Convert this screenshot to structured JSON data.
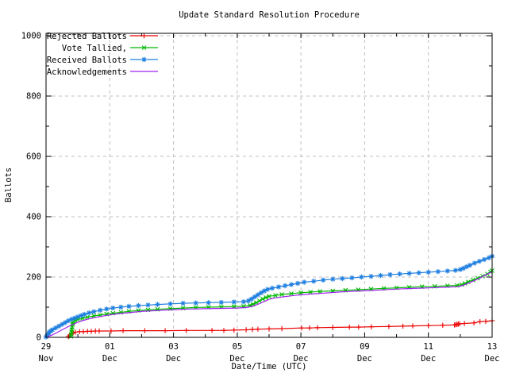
{
  "chart_data": {
    "type": "line",
    "title": "Update Standard Resolution Procedure",
    "xlabel": "Date/Time (UTC)",
    "ylabel": "Ballots",
    "xlim_days": [
      0,
      14
    ],
    "ylim": [
      0,
      1000
    ],
    "grid": true,
    "legend_position": "top-left-inside",
    "grid_color": "#bfbfbf",
    "axis_color": "#000000",
    "x_ticks": [
      {
        "day": 0,
        "line1": "29",
        "line2": "Nov"
      },
      {
        "day": 2,
        "line1": "01",
        "line2": "Dec"
      },
      {
        "day": 4,
        "line1": "03",
        "line2": "Dec"
      },
      {
        "day": 6,
        "line1": "05",
        "line2": "Dec"
      },
      {
        "day": 8,
        "line1": "07",
        "line2": "Dec"
      },
      {
        "day": 10,
        "line1": "09",
        "line2": "Dec"
      },
      {
        "day": 12,
        "line1": "11",
        "line2": "Dec"
      },
      {
        "day": 14,
        "line1": "13",
        "line2": "Dec"
      }
    ],
    "x_minor_tick_days": [
      1,
      3,
      5,
      7,
      9,
      11,
      13
    ],
    "x_grid_days": [
      2,
      4,
      6,
      8,
      10,
      12
    ],
    "y_major_ticks": [
      0,
      200,
      400,
      600,
      800,
      1000
    ],
    "y_minor_ticks": [
      100,
      300,
      500,
      700,
      900
    ],
    "y_grid_values": [
      200,
      400,
      600,
      800,
      1000
    ],
    "series": [
      {
        "name": "Rejected Ballots",
        "color": "#ee0000",
        "marker": "plus",
        "points": [
          [
            0.7,
            2
          ],
          [
            0.75,
            7
          ],
          [
            0.8,
            12
          ],
          [
            0.85,
            15
          ],
          [
            0.92,
            17
          ],
          [
            1.05,
            19
          ],
          [
            1.17,
            19
          ],
          [
            1.3,
            20
          ],
          [
            1.42,
            20
          ],
          [
            1.55,
            21
          ],
          [
            1.67,
            21
          ],
          [
            2.04,
            21
          ],
          [
            2.42,
            22
          ],
          [
            3.1,
            22
          ],
          [
            3.74,
            22
          ],
          [
            4.4,
            23
          ],
          [
            5.21,
            23
          ],
          [
            5.58,
            23
          ],
          [
            5.9,
            24
          ],
          [
            6.28,
            25
          ],
          [
            6.48,
            26
          ],
          [
            6.65,
            27
          ],
          [
            7.0,
            28
          ],
          [
            7.4,
            29
          ],
          [
            8.02,
            31
          ],
          [
            8.27,
            31
          ],
          [
            8.52,
            32
          ],
          [
            9.0,
            33
          ],
          [
            9.52,
            34
          ],
          [
            9.81,
            34
          ],
          [
            10.21,
            35
          ],
          [
            10.76,
            36
          ],
          [
            11.2,
            37
          ],
          [
            11.51,
            38
          ],
          [
            12.0,
            39
          ],
          [
            12.45,
            40
          ],
          [
            12.82,
            41
          ],
          [
            12.86,
            42
          ],
          [
            12.9,
            43
          ],
          [
            12.94,
            44
          ],
          [
            12.98,
            45
          ],
          [
            13.13,
            46
          ],
          [
            13.43,
            48
          ],
          [
            13.62,
            52
          ],
          [
            13.8,
            53
          ],
          [
            14.0,
            55
          ]
        ]
      },
      {
        "name": "Vote Tallied,",
        "color": "#00b800",
        "marker": "cross",
        "points": [
          [
            0.78,
            3
          ],
          [
            0.79,
            10
          ],
          [
            0.8,
            18
          ],
          [
            0.81,
            26
          ],
          [
            0.82,
            34
          ],
          [
            0.83,
            42
          ],
          [
            0.84,
            48
          ],
          [
            0.86,
            53
          ],
          [
            0.9,
            56
          ],
          [
            1.0,
            59
          ],
          [
            1.15,
            63
          ],
          [
            1.3,
            67
          ],
          [
            1.5,
            71
          ],
          [
            1.7,
            74
          ],
          [
            1.9,
            77
          ],
          [
            2.1,
            80
          ],
          [
            2.35,
            83
          ],
          [
            2.6,
            86
          ],
          [
            2.9,
            89
          ],
          [
            3.2,
            91
          ],
          [
            3.5,
            93
          ],
          [
            3.9,
            95
          ],
          [
            4.3,
            97
          ],
          [
            4.7,
            99
          ],
          [
            5.1,
            100
          ],
          [
            5.5,
            101
          ],
          [
            5.9,
            102
          ],
          [
            6.2,
            103
          ],
          [
            6.4,
            106
          ],
          [
            6.5,
            110
          ],
          [
            6.6,
            115
          ],
          [
            6.7,
            121
          ],
          [
            6.8,
            127
          ],
          [
            6.9,
            132
          ],
          [
            7.0,
            136
          ],
          [
            7.2,
            139
          ],
          [
            7.4,
            142
          ],
          [
            7.7,
            145
          ],
          [
            8.0,
            148
          ],
          [
            8.3,
            150
          ],
          [
            8.6,
            152
          ],
          [
            9.0,
            154
          ],
          [
            9.4,
            156
          ],
          [
            9.8,
            158
          ],
          [
            10.2,
            160
          ],
          [
            10.6,
            162
          ],
          [
            11.0,
            164
          ],
          [
            11.4,
            166
          ],
          [
            11.8,
            168
          ],
          [
            12.2,
            169
          ],
          [
            12.6,
            171
          ],
          [
            12.9,
            172
          ],
          [
            13.05,
            175
          ],
          [
            13.15,
            179
          ],
          [
            13.25,
            184
          ],
          [
            13.4,
            190
          ],
          [
            13.55,
            196
          ],
          [
            13.7,
            203
          ],
          [
            13.85,
            210
          ],
          [
            13.95,
            217
          ],
          [
            14.0,
            221
          ]
        ]
      },
      {
        "name": "Received Ballots",
        "color": "#1e7fe0",
        "marker": "star",
        "points": [
          [
            0,
            1
          ],
          [
            0.03,
            5
          ],
          [
            0.05,
            9
          ],
          [
            0.08,
            13
          ],
          [
            0.1,
            17
          ],
          [
            0.15,
            21
          ],
          [
            0.2,
            25
          ],
          [
            0.3,
            31
          ],
          [
            0.4,
            37
          ],
          [
            0.5,
            43
          ],
          [
            0.6,
            49
          ],
          [
            0.7,
            55
          ],
          [
            0.8,
            60
          ],
          [
            0.9,
            64
          ],
          [
            1.0,
            68
          ],
          [
            1.1,
            72
          ],
          [
            1.2,
            76
          ],
          [
            1.35,
            81
          ],
          [
            1.5,
            85
          ],
          [
            1.7,
            90
          ],
          [
            1.9,
            94
          ],
          [
            2.1,
            97
          ],
          [
            2.35,
            100
          ],
          [
            2.6,
            103
          ],
          [
            2.9,
            105
          ],
          [
            3.2,
            107
          ],
          [
            3.5,
            109
          ],
          [
            3.9,
            111
          ],
          [
            4.3,
            113
          ],
          [
            4.7,
            114
          ],
          [
            5.1,
            115
          ],
          [
            5.5,
            116
          ],
          [
            5.9,
            117
          ],
          [
            6.2,
            118
          ],
          [
            6.35,
            121
          ],
          [
            6.45,
            127
          ],
          [
            6.55,
            134
          ],
          [
            6.65,
            141
          ],
          [
            6.75,
            148
          ],
          [
            6.85,
            154
          ],
          [
            6.95,
            159
          ],
          [
            7.1,
            163
          ],
          [
            7.3,
            167
          ],
          [
            7.5,
            171
          ],
          [
            7.7,
            175
          ],
          [
            7.9,
            179
          ],
          [
            8.1,
            183
          ],
          [
            8.4,
            186
          ],
          [
            8.7,
            190
          ],
          [
            9.0,
            193
          ],
          [
            9.3,
            195
          ],
          [
            9.6,
            197
          ],
          [
            9.9,
            200
          ],
          [
            10.2,
            202
          ],
          [
            10.5,
            205
          ],
          [
            10.8,
            208
          ],
          [
            11.1,
            210
          ],
          [
            11.4,
            212
          ],
          [
            11.7,
            214
          ],
          [
            12.0,
            216
          ],
          [
            12.3,
            218
          ],
          [
            12.6,
            220
          ],
          [
            12.85,
            222
          ],
          [
            13.0,
            225
          ],
          [
            13.1,
            229
          ],
          [
            13.2,
            234
          ],
          [
            13.3,
            239
          ],
          [
            13.45,
            246
          ],
          [
            13.6,
            252
          ],
          [
            13.75,
            258
          ],
          [
            13.9,
            264
          ],
          [
            14.0,
            269
          ]
        ]
      },
      {
        "name": "Acknowledgements",
        "color": "#a020f0",
        "marker": "none",
        "points": [
          [
            0.05,
            2
          ],
          [
            0.2,
            8
          ],
          [
            0.35,
            16
          ],
          [
            0.5,
            25
          ],
          [
            0.65,
            33
          ],
          [
            0.8,
            41
          ],
          [
            0.95,
            48
          ],
          [
            1.1,
            54
          ],
          [
            1.3,
            60
          ],
          [
            1.5,
            65
          ],
          [
            1.7,
            69
          ],
          [
            1.9,
            73
          ],
          [
            2.1,
            76
          ],
          [
            2.4,
            80
          ],
          [
            2.7,
            83
          ],
          [
            3.0,
            86
          ],
          [
            3.3,
            88
          ],
          [
            3.7,
            90
          ],
          [
            4.1,
            92
          ],
          [
            4.5,
            94
          ],
          [
            5.0,
            95
          ],
          [
            5.5,
            96
          ],
          [
            6.0,
            97
          ],
          [
            6.3,
            99
          ],
          [
            6.5,
            104
          ],
          [
            6.7,
            112
          ],
          [
            6.85,
            119
          ],
          [
            7.0,
            126
          ],
          [
            7.2,
            131
          ],
          [
            7.5,
            135
          ],
          [
            7.8,
            139
          ],
          [
            8.1,
            142
          ],
          [
            8.5,
            145
          ],
          [
            8.9,
            148
          ],
          [
            9.3,
            151
          ],
          [
            9.7,
            153
          ],
          [
            10.1,
            155
          ],
          [
            10.5,
            157
          ],
          [
            11.0,
            160
          ],
          [
            11.5,
            162
          ],
          [
            12.0,
            164
          ],
          [
            12.5,
            166
          ],
          [
            12.9,
            168
          ],
          [
            13.05,
            171
          ],
          [
            13.2,
            177
          ],
          [
            13.35,
            184
          ],
          [
            13.5,
            191
          ],
          [
            13.65,
            199
          ],
          [
            13.8,
            207
          ],
          [
            13.95,
            215
          ],
          [
            14.0,
            218
          ]
        ]
      }
    ]
  }
}
